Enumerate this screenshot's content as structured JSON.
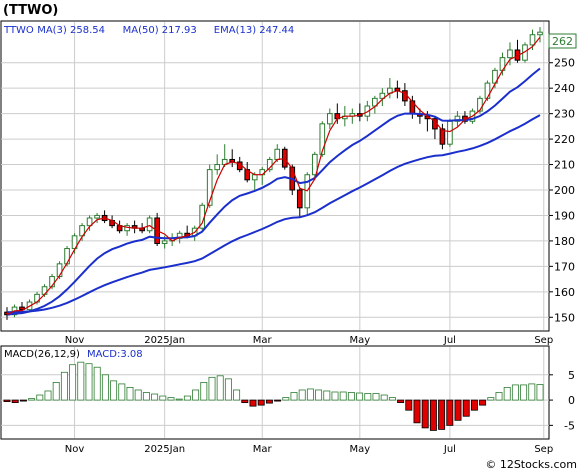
{
  "header": {
    "title": "(TTWO)",
    "legend": [
      {
        "label": "TTWO",
        "color": "#000000"
      },
      {
        "label": "MA(3)",
        "value": "258.54",
        "color": "#cc0000"
      },
      {
        "label": "MA(50)",
        "value": "217.93",
        "color": "#1a2fcc"
      },
      {
        "label": "EMA(13)",
        "value": "247.44",
        "color": "#1a2fcc"
      }
    ]
  },
  "last_price_label": "262",
  "macd_legend": {
    "label": "MACD(26,12,9)",
    "value_label": "MACD:3.08"
  },
  "watermark": "© 12Stocks.com",
  "colors": {
    "up": "#2e7d32",
    "down": "#e00000",
    "ma": "#1a2fcc",
    "ma3": "#cc0000",
    "grid": "#cccccc"
  },
  "chart_data": [
    {
      "type": "candlestick",
      "x_tick_labels": [
        "Nov",
        "2025Jan",
        "Mar",
        "May",
        "Jul",
        "Sep"
      ],
      "y_tick_labels": [
        150,
        160,
        170,
        180,
        190,
        200,
        210,
        220,
        230,
        240,
        250
      ],
      "ylim": [
        145,
        266
      ],
      "grid": true,
      "series": [
        {
          "name": "TTWO",
          "style": "candles",
          "ohlc": [
            [
              152,
              154,
              149,
              151
            ],
            [
              151,
              155,
              150,
              154
            ],
            [
              154,
              156,
              152,
              153
            ],
            [
              153,
              157,
              152,
              156
            ],
            [
              156,
              160,
              155,
              159
            ],
            [
              159,
              163,
              158,
              162
            ],
            [
              162,
              167,
              161,
              166
            ],
            [
              166,
              172,
              165,
              171
            ],
            [
              171,
              178,
              170,
              177
            ],
            [
              177,
              183,
              175,
              182
            ],
            [
              182,
              187,
              180,
              186
            ],
            [
              186,
              190,
              184,
              189
            ],
            [
              189,
              191,
              187,
              190
            ],
            [
              190,
              192,
              187,
              188
            ],
            [
              188,
              190,
              185,
              186
            ],
            [
              186,
              188,
              183,
              184
            ],
            [
              184,
              187,
              182,
              186
            ],
            [
              186,
              188,
              183,
              185
            ],
            [
              185,
              187,
              183,
              184
            ],
            [
              184,
              190,
              183,
              189
            ],
            [
              189,
              191,
              178,
              179
            ],
            [
              179,
              182,
              177,
              180
            ],
            [
              180,
              183,
              178,
              181
            ],
            [
              181,
              184,
              179,
              183
            ],
            [
              183,
              186,
              181,
              182
            ],
            [
              182,
              186,
              180,
              185
            ],
            [
              185,
              195,
              184,
              194
            ],
            [
              194,
              210,
              193,
              208
            ],
            [
              208,
              214,
              206,
              210
            ],
            [
              210,
              218,
              209,
              212
            ],
            [
              212,
              216,
              209,
              211
            ],
            [
              211,
              213,
              207,
              208
            ],
            [
              208,
              211,
              203,
              204
            ],
            [
              204,
              207,
              200,
              206
            ],
            [
              206,
              209,
              202,
              208
            ],
            [
              208,
              213,
              207,
              212
            ],
            [
              212,
              218,
              211,
              216
            ],
            [
              216,
              217,
              208,
              209
            ],
            [
              209,
              210,
              198,
              200
            ],
            [
              200,
              201,
              189,
              193
            ],
            [
              193,
              207,
              190,
              206
            ],
            [
              206,
              215,
              204,
              214
            ],
            [
              214,
              227,
              213,
              226
            ],
            [
              226,
              232,
              224,
              230
            ],
            [
              230,
              234,
              226,
              228
            ],
            [
              228,
              233,
              225,
              229
            ],
            [
              229,
              232,
              226,
              230
            ],
            [
              230,
              234,
              227,
              229
            ],
            [
              229,
              235,
              227,
              233
            ],
            [
              233,
              237,
              230,
              236
            ],
            [
              236,
              240,
              233,
              238
            ],
            [
              238,
              244,
              236,
              240
            ],
            [
              240,
              243,
              236,
              239
            ],
            [
              239,
              242,
              233,
              235
            ],
            [
              235,
              237,
              228,
              230
            ],
            [
              230,
              232,
              226,
              229
            ],
            [
              229,
              231,
              223,
              228
            ],
            [
              228,
              229,
              220,
              224
            ],
            [
              224,
              226,
              216,
              218
            ],
            [
              218,
              228,
              217,
              227
            ],
            [
              227,
              231,
              225,
              229
            ],
            [
              229,
              231,
              226,
              227
            ],
            [
              227,
              232,
              226,
              231
            ],
            [
              231,
              237,
              230,
              236
            ],
            [
              236,
              243,
              235,
              242
            ],
            [
              242,
              248,
              240,
              247
            ],
            [
              247,
              254,
              245,
              252
            ],
            [
              252,
              258,
              249,
              255
            ],
            [
              255,
              259,
              250,
              251
            ],
            [
              251,
              258,
              250,
              257
            ],
            [
              257,
              263,
              255,
              261
            ],
            [
              261,
              264,
              258,
              262
            ]
          ]
        },
        {
          "name": "MA(3)",
          "style": "line"
        },
        {
          "name": "EMA(13)",
          "style": "line"
        },
        {
          "name": "MA(50)",
          "style": "line"
        }
      ]
    },
    {
      "type": "bar",
      "y_tick_labels": [
        5,
        0,
        -5
      ],
      "ylim": [
        -7.5,
        10.5
      ],
      "grid": true,
      "series": [
        {
          "name": "MACD(26,12,9)",
          "values": [
            -0.3,
            -0.5,
            -0.2,
            0.3,
            1.0,
            1.8,
            3.5,
            5.5,
            7.0,
            7.5,
            7.2,
            6.5,
            5.0,
            3.8,
            3.2,
            2.5,
            2.0,
            1.5,
            1.2,
            0.8,
            0.5,
            0.2,
            0.8,
            2.0,
            3.5,
            4.5,
            4.8,
            4.2,
            2.0,
            -0.5,
            -1.2,
            -1.0,
            -0.6,
            -0.2,
            0.5,
            1.5,
            2.0,
            2.2,
            2.0,
            1.8,
            1.6,
            1.6,
            1.5,
            1.4,
            1.3,
            1.3,
            1.0,
            0.5,
            -0.5,
            -2.0,
            -4.5,
            -5.5,
            -6.0,
            -5.8,
            -5.0,
            -4.0,
            -3.2,
            -2.0,
            -1.0,
            0.5,
            1.5,
            2.5,
            3.0,
            3.0,
            3.2,
            3.08
          ]
        }
      ]
    }
  ]
}
